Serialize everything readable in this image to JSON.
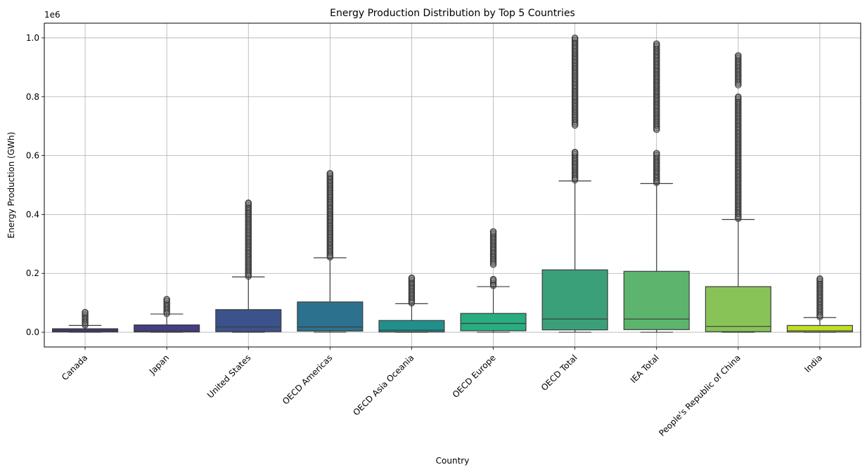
{
  "chart_data": {
    "type": "box",
    "title": "Energy Production Distribution by Top 5 Countries",
    "xlabel": "Country",
    "ylabel": "Energy Production (GWh)",
    "y_offset_label": "1e6",
    "y_scale_multiplier": 1000000,
    "ylim": [
      -50000,
      1050000
    ],
    "y_ticks": [
      0,
      200000,
      400000,
      600000,
      800000,
      1000000
    ],
    "y_tick_labels": [
      "0.0",
      "0.2",
      "0.4",
      "0.6",
      "0.8",
      "1.0"
    ],
    "grid": true,
    "categories": [
      "Canada",
      "Japan",
      "United States",
      "OECD Americas",
      "OECD Asia Oceania",
      "OECD Europe",
      "OECD Total",
      "IEA Total",
      "People's Republic of China",
      "India"
    ],
    "boxes": [
      {
        "name": "Canada",
        "color": "#46327e",
        "q1": 1000,
        "median": 4000,
        "q3": 12000,
        "whisker_low": 0,
        "whisker_high": 23000,
        "outliers": [
          [
            24000,
            68000
          ]
        ]
      },
      {
        "name": "Japan",
        "color": "#433e85",
        "q1": 1000,
        "median": 5000,
        "q3": 25000,
        "whisker_low": 0,
        "whisker_high": 62000,
        "outliers": [
          [
            63000,
            112000
          ]
        ]
      },
      {
        "name": "United States",
        "color": "#3b528b",
        "q1": 2000,
        "median": 18000,
        "q3": 77000,
        "whisker_low": 0,
        "whisker_high": 188000,
        "outliers": [
          [
            190000,
            440000
          ]
        ]
      },
      {
        "name": "OECD Americas",
        "color": "#2c728e",
        "q1": 4000,
        "median": 18000,
        "q3": 103000,
        "whisker_low": 0,
        "whisker_high": 253000,
        "outliers": [
          [
            255000,
            540000
          ]
        ]
      },
      {
        "name": "OECD Asia Oceania",
        "color": "#21908d",
        "q1": 1000,
        "median": 7000,
        "q3": 40000,
        "whisker_low": 0,
        "whisker_high": 97000,
        "outliers": [
          [
            99000,
            185000
          ]
        ]
      },
      {
        "name": "OECD Europe",
        "color": "#27ad81",
        "q1": 5000,
        "median": 30000,
        "q3": 64000,
        "whisker_low": 0,
        "whisker_high": 155000,
        "outliers": [
          [
            158000,
            180000
          ],
          [
            230000,
            342000
          ]
        ]
      },
      {
        "name": "OECD Total",
        "color": "#3aa079",
        "q1": 8000,
        "median": 45000,
        "q3": 212000,
        "whisker_low": 0,
        "whisker_high": 514000,
        "outliers": [
          [
            517000,
            612000
          ],
          [
            703000,
            1000000
          ]
        ]
      },
      {
        "name": "IEA Total",
        "color": "#5db56d",
        "q1": 9000,
        "median": 45000,
        "q3": 207000,
        "whisker_low": 0,
        "whisker_high": 505000,
        "outliers": [
          [
            508000,
            608000
          ],
          [
            688000,
            980000
          ]
        ]
      },
      {
        "name": "People's Republic of China",
        "color": "#88c357",
        "q1": 2000,
        "median": 20000,
        "q3": 155000,
        "whisker_low": 0,
        "whisker_high": 383000,
        "outliers": [
          [
            386000,
            800000
          ],
          [
            840000,
            940000
          ]
        ]
      },
      {
        "name": "India",
        "color": "#bddf26",
        "q1": 1000,
        "median": 5000,
        "q3": 23000,
        "whisker_low": 0,
        "whisker_high": 50000,
        "outliers": [
          [
            52000,
            182000
          ]
        ]
      }
    ]
  }
}
